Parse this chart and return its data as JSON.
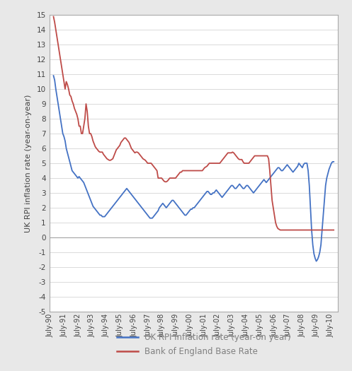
{
  "ylabel": "UK RPI inflation rate (year-on-year)",
  "ylim": [
    -5,
    15
  ],
  "yticks": [
    -5,
    -4,
    -3,
    -2,
    -1,
    0,
    1,
    2,
    3,
    4,
    5,
    6,
    7,
    8,
    9,
    10,
    11,
    12,
    13,
    14,
    15
  ],
  "bg_color": "#e8e8e8",
  "plot_bg_color": "#ffffff",
  "rpi_color": "#4472C4",
  "boe_color": "#BE4B48",
  "legend_labels": [
    "UK RPI inflation rate (year-on year)",
    "Bank of England Base Rate"
  ],
  "legend_text_color": "#808080",
  "x_tick_labels": [
    "July-90",
    "July-91",
    "July-92",
    "July-93",
    "July-94",
    "July-95",
    "July-96",
    "July-97",
    "July-98",
    "July-99",
    "July-00",
    "July-01",
    "July-02",
    "July-03",
    "July-04",
    "July-05",
    "July-06",
    "July-07",
    "July-08",
    "July-09",
    "July-10"
  ],
  "rpi_data": [
    10.9,
    10.6,
    10.0,
    9.5,
    9.0,
    8.5,
    8.0,
    7.5,
    7.0,
    6.8,
    6.5,
    6.0,
    5.7,
    5.4,
    5.1,
    4.8,
    4.5,
    4.4,
    4.3,
    4.2,
    4.1,
    4.0,
    4.1,
    4.0,
    3.9,
    3.8,
    3.7,
    3.5,
    3.3,
    3.1,
    2.9,
    2.7,
    2.5,
    2.3,
    2.1,
    2.0,
    1.9,
    1.8,
    1.7,
    1.6,
    1.5,
    1.5,
    1.4,
    1.4,
    1.4,
    1.5,
    1.6,
    1.7,
    1.8,
    1.9,
    2.0,
    2.1,
    2.2,
    2.3,
    2.4,
    2.5,
    2.6,
    2.7,
    2.8,
    2.9,
    3.0,
    3.1,
    3.2,
    3.3,
    3.2,
    3.1,
    3.0,
    2.9,
    2.8,
    2.7,
    2.6,
    2.5,
    2.4,
    2.3,
    2.2,
    2.1,
    2.0,
    1.9,
    1.8,
    1.7,
    1.6,
    1.5,
    1.4,
    1.3,
    1.3,
    1.3,
    1.4,
    1.5,
    1.6,
    1.7,
    1.8,
    2.0,
    2.1,
    2.2,
    2.3,
    2.2,
    2.1,
    2.0,
    2.1,
    2.2,
    2.3,
    2.4,
    2.5,
    2.5,
    2.4,
    2.3,
    2.2,
    2.1,
    2.0,
    1.9,
    1.8,
    1.7,
    1.6,
    1.5,
    1.5,
    1.6,
    1.7,
    1.8,
    1.9,
    1.9,
    2.0,
    2.0,
    2.1,
    2.2,
    2.3,
    2.4,
    2.5,
    2.6,
    2.7,
    2.8,
    2.9,
    3.0,
    3.1,
    3.1,
    3.0,
    2.9,
    2.9,
    3.0,
    3.0,
    3.1,
    3.2,
    3.1,
    3.0,
    2.9,
    2.8,
    2.7,
    2.8,
    2.9,
    3.0,
    3.1,
    3.2,
    3.3,
    3.4,
    3.5,
    3.5,
    3.4,
    3.3,
    3.3,
    3.4,
    3.5,
    3.6,
    3.5,
    3.4,
    3.3,
    3.3,
    3.4,
    3.5,
    3.5,
    3.4,
    3.3,
    3.2,
    3.1,
    3.0,
    3.1,
    3.2,
    3.3,
    3.4,
    3.5,
    3.6,
    3.7,
    3.8,
    3.9,
    3.8,
    3.7,
    3.8,
    3.9,
    4.0,
    4.1,
    4.2,
    4.3,
    4.4,
    4.5,
    4.6,
    4.7,
    4.7,
    4.6,
    4.5,
    4.5,
    4.6,
    4.7,
    4.8,
    4.9,
    4.8,
    4.7,
    4.6,
    4.5,
    4.4,
    4.5,
    4.6,
    4.7,
    4.8,
    5.0,
    4.9,
    4.8,
    4.7,
    4.9,
    5.0,
    5.0,
    5.0,
    4.5,
    3.5,
    2.0,
    0.5,
    -0.5,
    -1.1,
    -1.4,
    -1.6,
    -1.5,
    -1.3,
    -1.0,
    -0.5,
    0.5,
    1.5,
    2.5,
    3.5,
    4.0,
    4.3,
    4.6,
    4.8,
    5.0,
    5.1,
    5.1
  ],
  "boe_data": [
    14.88,
    14.5,
    14.0,
    13.5,
    13.0,
    12.5,
    12.0,
    11.5,
    11.0,
    10.5,
    10.0,
    10.5,
    10.3,
    10.0,
    9.6,
    9.5,
    9.2,
    9.0,
    8.7,
    8.5,
    8.3,
    8.0,
    7.5,
    7.5,
    7.0,
    7.0,
    7.5,
    8.0,
    9.0,
    8.5,
    7.5,
    7.0,
    7.0,
    6.8,
    6.5,
    6.3,
    6.1,
    6.0,
    5.9,
    5.8,
    5.75,
    5.75,
    5.75,
    5.6,
    5.5,
    5.4,
    5.3,
    5.25,
    5.2,
    5.2,
    5.25,
    5.3,
    5.5,
    5.7,
    5.9,
    6.0,
    6.1,
    6.2,
    6.4,
    6.5,
    6.6,
    6.7,
    6.7,
    6.6,
    6.5,
    6.4,
    6.2,
    6.0,
    5.9,
    5.8,
    5.7,
    5.75,
    5.75,
    5.7,
    5.6,
    5.5,
    5.4,
    5.3,
    5.25,
    5.2,
    5.1,
    5.0,
    5.0,
    5.0,
    5.0,
    4.9,
    4.8,
    4.7,
    4.6,
    4.5,
    4.0,
    4.0,
    4.0,
    4.0,
    3.9,
    3.8,
    3.75,
    3.75,
    3.8,
    3.9,
    4.0,
    4.0,
    4.0,
    4.0,
    4.0,
    4.0,
    4.1,
    4.2,
    4.3,
    4.4,
    4.4,
    4.5,
    4.5,
    4.5,
    4.5,
    4.5,
    4.5,
    4.5,
    4.5,
    4.5,
    4.5,
    4.5,
    4.5,
    4.5,
    4.5,
    4.5,
    4.5,
    4.5,
    4.5,
    4.6,
    4.7,
    4.75,
    4.8,
    4.9,
    5.0,
    5.0,
    5.0,
    5.0,
    5.0,
    5.0,
    5.0,
    5.0,
    5.0,
    5.0,
    5.1,
    5.2,
    5.3,
    5.4,
    5.5,
    5.6,
    5.7,
    5.7,
    5.7,
    5.7,
    5.75,
    5.7,
    5.6,
    5.5,
    5.4,
    5.3,
    5.25,
    5.25,
    5.25,
    5.1,
    5.0,
    5.0,
    5.0,
    5.0,
    5.0,
    5.1,
    5.2,
    5.3,
    5.4,
    5.5,
    5.5,
    5.5,
    5.5,
    5.5,
    5.5,
    5.5,
    5.5,
    5.5,
    5.5,
    5.5,
    5.5,
    5.3,
    4.5,
    3.5,
    2.5,
    2.0,
    1.5,
    1.0,
    0.75,
    0.6,
    0.55,
    0.5,
    0.5,
    0.5,
    0.5,
    0.5,
    0.5,
    0.5,
    0.5,
    0.5,
    0.5,
    0.5,
    0.5,
    0.5,
    0.5,
    0.5,
    0.5,
    0.5,
    0.5,
    0.5,
    0.5,
    0.5,
    0.5,
    0.5,
    0.5,
    0.5,
    0.5,
    0.5,
    0.5,
    0.5,
    0.5,
    0.5,
    0.5,
    0.5,
    0.5,
    0.5,
    0.5,
    0.5,
    0.5,
    0.5,
    0.5,
    0.5,
    0.5,
    0.5,
    0.5,
    0.5,
    0.5,
    0.5
  ]
}
